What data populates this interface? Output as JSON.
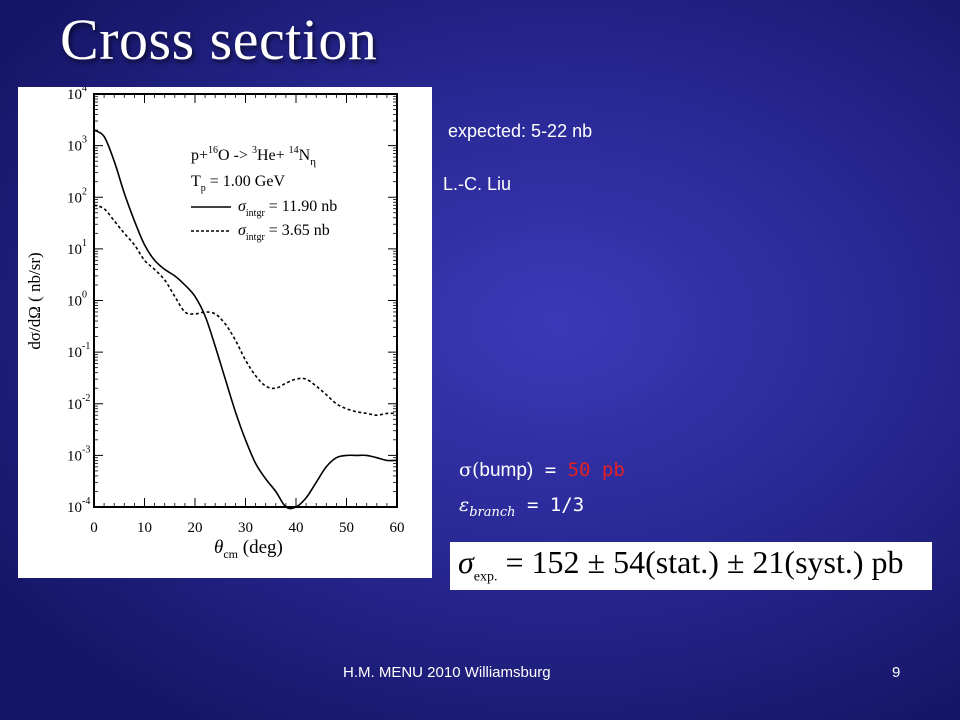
{
  "slide": {
    "title": "Cross section",
    "expected_text": "expected: 5-22 nb",
    "author_text": "L.-C. Liu",
    "sigma_prefix": "σ(",
    "sigma_paren_text": "bump)",
    "sigma_equals": " = ",
    "sigma_value": "50 pb",
    "branch_symbol": "ε",
    "branch_subscript": "branch",
    "branch_value": " =  1/3",
    "result_sigma": "σ",
    "result_subscript": "exp.",
    "result_body": " = 152 ± 54(stat.) ± 21(syst.) pb",
    "footer_left": "H.M.  MENU 2010 Williamsburg",
    "footer_right": "9"
  },
  "colors": {
    "value_highlight": "#e42020",
    "background": "#2a2a98"
  },
  "chart_data": {
    "type": "line",
    "title": "",
    "xlabel": "θcm (deg)",
    "ylabel": "dσ/dΩ ( nb/sr)",
    "xlim": [
      0,
      60
    ],
    "ylim": [
      0.0001,
      10000
    ],
    "yscale": "log",
    "x_ticks": [
      "0",
      "10",
      "20",
      "30",
      "40",
      "50",
      "60"
    ],
    "y_ticks": [
      "10-4",
      "10-3",
      "10-2",
      "10-1",
      "100",
      "101",
      "102",
      "103",
      "104"
    ],
    "annotation_lines": [
      "p+16O -> 3He+ 14Nη",
      "Tp = 1.00  GeV",
      "σintgr = 11.90  nb",
      "σintgr = 3.65   nb"
    ],
    "legend_placement": "top-right",
    "series": [
      {
        "style": "solid",
        "x": [
          0,
          2,
          4,
          6,
          8,
          10,
          12,
          14,
          16,
          18,
          20,
          22,
          24,
          26,
          28,
          30,
          32,
          34,
          36,
          38,
          40,
          42,
          44,
          46,
          48,
          50,
          52,
          54,
          56,
          58,
          60
        ],
        "y": [
          2000,
          1500,
          500,
          120,
          35,
          12,
          6,
          4,
          3,
          2,
          1.2,
          0.5,
          0.13,
          0.03,
          0.007,
          0.002,
          0.0007,
          0.00035,
          0.0002,
          0.0001,
          0.0001,
          0.00015,
          0.0003,
          0.0006,
          0.0009,
          0.001,
          0.001,
          0.001,
          0.0009,
          0.0008,
          0.0008
        ]
      },
      {
        "style": "dashed",
        "x": [
          0,
          2,
          4,
          6,
          8,
          10,
          12,
          14,
          16,
          18,
          20,
          22,
          24,
          26,
          28,
          30,
          32,
          34,
          36,
          38,
          40,
          42,
          44,
          46,
          48,
          50,
          52,
          54,
          56,
          58,
          60
        ],
        "y": [
          70,
          60,
          35,
          20,
          12,
          6,
          4,
          2.5,
          1.2,
          0.6,
          0.55,
          0.6,
          0.55,
          0.35,
          0.17,
          0.07,
          0.035,
          0.022,
          0.02,
          0.025,
          0.03,
          0.03,
          0.022,
          0.015,
          0.01,
          0.008,
          0.007,
          0.0065,
          0.006,
          0.0065,
          0.0065
        ]
      }
    ]
  }
}
